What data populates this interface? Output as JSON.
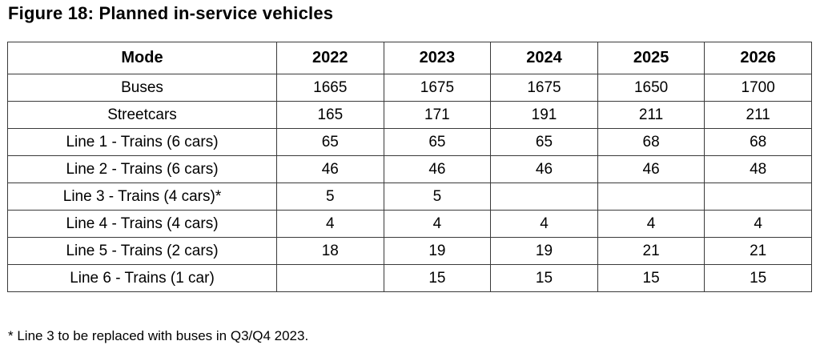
{
  "figure": {
    "title": "Figure 18: Planned in-service vehicles",
    "footnote": "* Line 3 to be replaced with buses in Q3/Q4 2023."
  },
  "colors": {
    "text": "#000000",
    "border": "#3a3a3a",
    "background": "#ffffff"
  },
  "chart_data": {
    "type": "table",
    "title": "Figure 18: Planned in-service vehicles",
    "columns": [
      "Mode",
      "2022",
      "2023",
      "2024",
      "2025",
      "2026"
    ],
    "rows": [
      {
        "mode": "Buses",
        "values": [
          "1665",
          "1675",
          "1675",
          "1650",
          "1700"
        ]
      },
      {
        "mode": "Streetcars",
        "values": [
          "165",
          "171",
          "191",
          "211",
          "211"
        ]
      },
      {
        "mode": "Line 1 - Trains (6 cars)",
        "values": [
          "65",
          "65",
          "65",
          "68",
          "68"
        ]
      },
      {
        "mode": "Line 2 - Trains (6 cars)",
        "values": [
          "46",
          "46",
          "46",
          "46",
          "48"
        ]
      },
      {
        "mode": "Line 3 - Trains (4 cars)*",
        "values": [
          "5",
          "5",
          "",
          "",
          ""
        ]
      },
      {
        "mode": "Line 4 - Trains (4 cars)",
        "values": [
          "4",
          "4",
          "4",
          "4",
          "4"
        ]
      },
      {
        "mode": "Line 5 - Trains (2 cars)",
        "values": [
          "18",
          "19",
          "19",
          "21",
          "21"
        ]
      },
      {
        "mode": "Line 6 - Trains (1 car)",
        "values": [
          "",
          "15",
          "15",
          "15",
          "15"
        ]
      }
    ],
    "footnote": "* Line 3 to be replaced with buses in Q3/Q4 2023."
  }
}
